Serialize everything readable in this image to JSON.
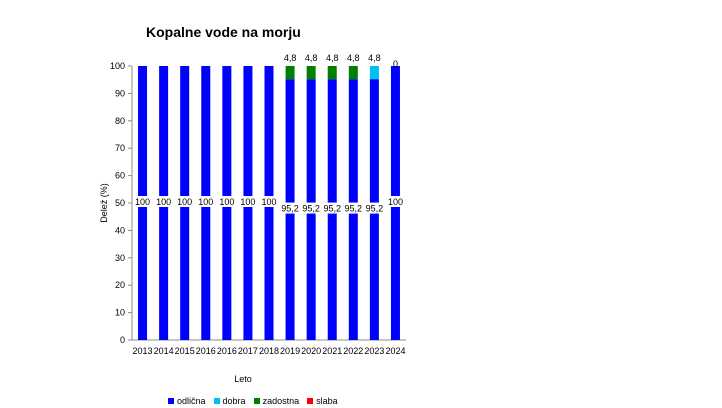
{
  "chart_data": {
    "type": "bar",
    "stacked": true,
    "title": "Kopalne vode na morju",
    "xlabel": "Leto",
    "ylabel": "Delež (%)",
    "ylim": [
      0,
      100
    ],
    "yticks": [
      0,
      10,
      20,
      30,
      40,
      50,
      60,
      70,
      80,
      90,
      100
    ],
    "grid": false,
    "legend_position": "bottom",
    "categories": [
      "2013",
      "2014",
      "2015",
      "2016",
      "2016",
      "2017",
      "2018",
      "2019",
      "2020",
      "2021",
      "2022",
      "2023",
      "2024"
    ],
    "series": [
      {
        "name": "odlična",
        "color": "#0000ff",
        "values": [
          100,
          100,
          100,
          100,
          100,
          100,
          100,
          95.2,
          95.2,
          95.2,
          95.2,
          95.2,
          100
        ],
        "labels": [
          "100",
          "100",
          "100",
          "100",
          "100",
          "100",
          "100",
          "95,2",
          "95,2",
          "95,2",
          "95,2",
          "95,2",
          "100"
        ]
      },
      {
        "name": "dobra",
        "color": "#00c0f0",
        "values": [
          0,
          0,
          0,
          0,
          0,
          0,
          0,
          0,
          0,
          0,
          0,
          4.8,
          0
        ],
        "labels": [
          "",
          "",
          "",
          "",
          "",
          "",
          "",
          "",
          "",
          "",
          "",
          "4,8",
          ""
        ]
      },
      {
        "name": "zadostna",
        "color": "#008000",
        "values": [
          0,
          0,
          0,
          0,
          0,
          0,
          0,
          4.8,
          4.8,
          4.8,
          4.8,
          0,
          0
        ],
        "labels": [
          "",
          "",
          "",
          "",
          "",
          "",
          "",
          "4,8",
          "4,8",
          "4,8",
          "4,8",
          "",
          ""
        ]
      },
      {
        "name": "slaba",
        "color": "#ff0000",
        "values": [
          0,
          0,
          0,
          0,
          0,
          0,
          0,
          0,
          0,
          0,
          0,
          0,
          0
        ],
        "labels": [
          "",
          "",
          "",
          "",
          "",
          "",
          "",
          "",
          "",
          "",
          "",
          "",
          "0"
        ]
      }
    ]
  }
}
